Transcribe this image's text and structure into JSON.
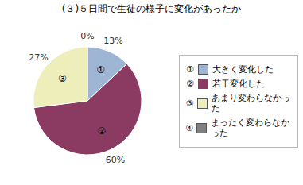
{
  "chart_data": {
    "type": "pie",
    "title": "(３)５日間で生徒の様子に変化があったか",
    "categories": [
      "①",
      "②",
      "③",
      "④"
    ],
    "legend_labels": [
      "大きく変化した",
      "若干変化した",
      "あまり変わらなかった",
      "まったく変わらなかった"
    ],
    "values": [
      13,
      60,
      27,
      0
    ],
    "value_labels": [
      "13%",
      "60%",
      "27%",
      "0%"
    ],
    "data_labels": true,
    "colors": [
      "#9eb6d4",
      "#8b3a62",
      "#eeeebb",
      "#7f7f7f"
    ],
    "legend": "right"
  }
}
